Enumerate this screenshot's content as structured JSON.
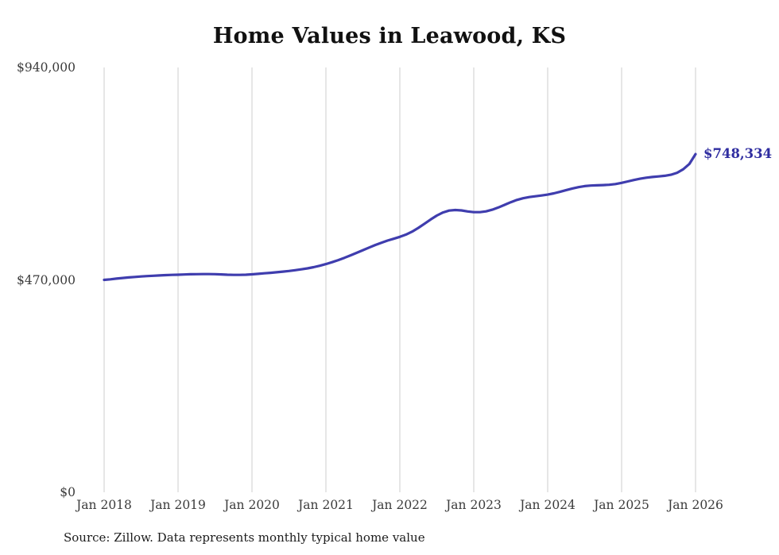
{
  "chart": {
    "title": "Home Values in Leawood, KS",
    "end_label": "$748,334",
    "source": "Source: Zillow. Data represents monthly typical home value"
  },
  "chart_data": {
    "type": "line",
    "title": "Home Values in Leawood, KS",
    "x_start": "Jan 2018",
    "frequency": "monthly",
    "x_ticks": [
      "Jan 2018",
      "Jan 2019",
      "Jan 2020",
      "Jan 2021",
      "Jan 2022",
      "Jan 2023",
      "Jan 2024",
      "Jan 2025",
      "Jan 2026"
    ],
    "y_ticks": [
      {
        "value": 940000,
        "label": "$940,000"
      },
      {
        "value": 470000,
        "label": "$470,000"
      },
      {
        "value": 0,
        "label": "$0"
      }
    ],
    "ylim": [
      0,
      940000
    ],
    "grid": "vertical-only",
    "legend": "none",
    "line_color": "#3f3dae",
    "end_label": "$748,334",
    "final_value": 748334,
    "values": [
      470000,
      471300,
      472800,
      474200,
      475400,
      476500,
      477500,
      478400,
      479200,
      479900,
      480500,
      481000,
      481500,
      482000,
      482400,
      482700,
      482900,
      482900,
      482600,
      482100,
      481500,
      481100,
      481100,
      481500,
      482300,
      483300,
      484500,
      485700,
      486900,
      488200,
      489700,
      491400,
      493300,
      495500,
      498100,
      501200,
      504900,
      509100,
      513800,
      518900,
      524300,
      529900,
      535700,
      541500,
      547100,
      552300,
      556900,
      561100,
      565300,
      570300,
      576900,
      585100,
      594300,
      603700,
      612300,
      619100,
      623300,
      624700,
      623700,
      621500,
      619900,
      619900,
      621700,
      625300,
      630300,
      636100,
      641900,
      646900,
      650700,
      653300,
      655100,
      656700,
      658700,
      661500,
      664900,
      668700,
      672300,
      675300,
      677500,
      678700,
      679300,
      679700,
      680500,
      682100,
      684700,
      687900,
      691100,
      693900,
      696100,
      697700,
      698900,
      700300,
      702700,
      707100,
      714700,
      726700,
      748334
    ],
    "source": "Source: Zillow. Data represents monthly typical home value"
  }
}
